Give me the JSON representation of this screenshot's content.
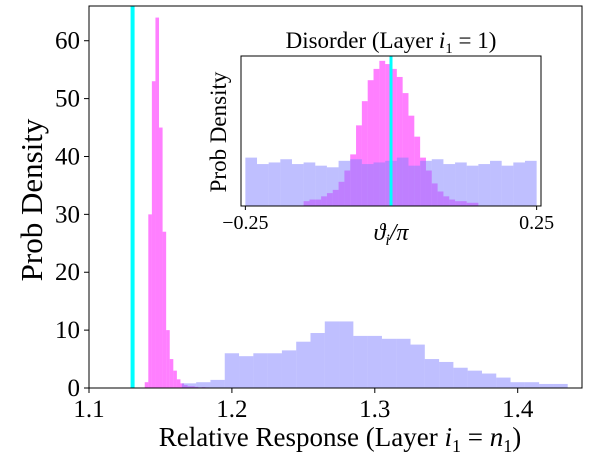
{
  "chart_data": [
    {
      "type": "histogram",
      "xlabel": "Relative Response (Layer $i_1 = n_1$)",
      "xlabel_parts": [
        "Relative Response (Layer ",
        "i",
        "1",
        " = ",
        "n",
        "1",
        ")"
      ],
      "ylabel": "Prob Density",
      "xlim": [
        1.1,
        1.445
      ],
      "ylim": [
        0,
        66
      ],
      "xticks": [
        1.1,
        1.2,
        1.3,
        1.4
      ],
      "xtick_labels": [
        "1.1",
        "1.2",
        "1.3",
        "1.4"
      ],
      "yticks": [
        0,
        10,
        20,
        30,
        40,
        50,
        60
      ],
      "ytick_labels": [
        "0",
        "10",
        "20",
        "30",
        "40",
        "50",
        "60"
      ],
      "reference_line": {
        "x": 1.1305,
        "color": "#00ffff"
      },
      "series": [
        {
          "color": "#ff00ff",
          "opacity": 0.5,
          "bins": [
            [
              1.139,
              1.1415,
              1.0
            ],
            [
              1.1415,
              1.144,
              30.0
            ],
            [
              1.144,
              1.1465,
              53.0
            ],
            [
              1.1465,
              1.149,
              64.0
            ],
            [
              1.149,
              1.1515,
              45.0
            ],
            [
              1.1515,
              1.154,
              27.0
            ],
            [
              1.154,
              1.1565,
              10.0
            ],
            [
              1.1565,
              1.159,
              5.0
            ],
            [
              1.159,
              1.1615,
              3.0
            ],
            [
              1.1615,
              1.164,
              1.5
            ],
            [
              1.164,
              1.1665,
              0.8
            ],
            [
              1.1665,
              1.169,
              0.5
            ],
            [
              1.169,
              1.1715,
              0.3
            ],
            [
              1.1715,
              1.174,
              0.3
            ],
            [
              1.174,
              1.1765,
              0.2
            ],
            [
              1.1765,
              1.179,
              0.1
            ],
            [
              1.179,
              1.1815,
              0.15
            ],
            [
              1.1815,
              1.184,
              0.1
            ]
          ]
        },
        {
          "color": "#8080ff",
          "opacity": 0.5,
          "bins": [
            [
              1.165,
              1.175,
              0.8
            ],
            [
              1.175,
              1.185,
              1.0
            ],
            [
              1.185,
              1.195,
              1.4
            ],
            [
              1.195,
              1.205,
              6.0
            ],
            [
              1.205,
              1.215,
              5.5
            ],
            [
              1.215,
              1.225,
              6.0
            ],
            [
              1.225,
              1.235,
              6.0
            ],
            [
              1.235,
              1.245,
              6.5
            ],
            [
              1.245,
              1.255,
              8.0
            ],
            [
              1.255,
              1.265,
              9.5
            ],
            [
              1.265,
              1.275,
              11.5
            ],
            [
              1.275,
              1.285,
              11.5
            ],
            [
              1.285,
              1.295,
              9.0
            ],
            [
              1.295,
              1.305,
              9.0
            ],
            [
              1.305,
              1.315,
              8.5
            ],
            [
              1.315,
              1.325,
              8.5
            ],
            [
              1.325,
              1.335,
              7.5
            ],
            [
              1.335,
              1.345,
              5.0
            ],
            [
              1.345,
              1.355,
              4.5
            ],
            [
              1.355,
              1.365,
              3.5
            ],
            [
              1.365,
              1.375,
              3.0
            ],
            [
              1.375,
              1.385,
              2.5
            ],
            [
              1.385,
              1.395,
              1.8
            ],
            [
              1.395,
              1.405,
              1.0
            ],
            [
              1.405,
              1.415,
              1.0
            ],
            [
              1.415,
              1.425,
              0.7
            ],
            [
              1.425,
              1.435,
              0.7
            ]
          ]
        }
      ]
    },
    {
      "type": "histogram",
      "title": "Disorder (Layer $i_1 = 1$)",
      "title_parts": [
        "Disorder (Layer ",
        "i",
        "1",
        " = 1)"
      ],
      "xlabel": "$\\vartheta_i/\\pi$",
      "xlabel_parts": [
        "ϑ",
        "i",
        "/π"
      ],
      "ylabel": "Prob Density",
      "xlim": [
        -0.2575,
        0.2575
      ],
      "ylim": [
        0,
        9.3
      ],
      "xticks": [
        -0.25,
        0.25
      ],
      "xtick_labels": [
        "−0.25",
        "0.25"
      ],
      "yticks": [],
      "reference_line": {
        "x": 0.0,
        "color": "#00ffff"
      },
      "series": [
        {
          "color": "#ff00ff",
          "opacity": 0.5,
          "bins": [
            [
              -0.15,
              -0.14,
              0.3
            ],
            [
              -0.14,
              -0.13,
              0.4
            ],
            [
              -0.13,
              -0.12,
              0.4
            ],
            [
              -0.12,
              -0.11,
              0.6
            ],
            [
              -0.11,
              -0.1,
              0.8
            ],
            [
              -0.1,
              -0.09,
              1.0
            ],
            [
              -0.09,
              -0.08,
              1.5
            ],
            [
              -0.08,
              -0.07,
              2.2
            ],
            [
              -0.07,
              -0.06,
              3.2
            ],
            [
              -0.06,
              -0.05,
              5.0
            ],
            [
              -0.05,
              -0.04,
              6.5
            ],
            [
              -0.04,
              -0.03,
              7.8
            ],
            [
              -0.03,
              -0.02,
              8.5
            ],
            [
              -0.02,
              -0.01,
              9.0
            ],
            [
              -0.01,
              0.0,
              8.8
            ],
            [
              0.0,
              0.01,
              8.5
            ],
            [
              0.01,
              0.02,
              8.0
            ],
            [
              0.02,
              0.03,
              7.0
            ],
            [
              0.03,
              0.04,
              5.6
            ],
            [
              0.04,
              0.05,
              4.3
            ],
            [
              0.05,
              0.06,
              3.0
            ],
            [
              0.06,
              0.07,
              2.2
            ],
            [
              0.07,
              0.08,
              1.4
            ],
            [
              0.08,
              0.09,
              0.9
            ],
            [
              0.09,
              0.1,
              0.6
            ],
            [
              0.1,
              0.11,
              0.4
            ],
            [
              0.11,
              0.12,
              0.3
            ],
            [
              0.12,
              0.13,
              0.3
            ],
            [
              0.13,
              0.14,
              0.2
            ],
            [
              0.14,
              0.15,
              0.2
            ]
          ]
        },
        {
          "color": "#8080ff",
          "opacity": 0.5,
          "bins": [
            [
              -0.25,
              -0.23,
              3.0
            ],
            [
              -0.23,
              -0.21,
              2.6
            ],
            [
              -0.21,
              -0.19,
              2.7
            ],
            [
              -0.19,
              -0.17,
              2.9
            ],
            [
              -0.17,
              -0.15,
              2.6
            ],
            [
              -0.15,
              -0.13,
              2.7
            ],
            [
              -0.13,
              -0.11,
              2.5
            ],
            [
              -0.11,
              -0.09,
              2.4
            ],
            [
              -0.09,
              -0.07,
              2.8
            ],
            [
              -0.07,
              -0.05,
              2.9
            ],
            [
              -0.05,
              -0.03,
              2.6
            ],
            [
              -0.03,
              -0.01,
              2.7
            ],
            [
              -0.01,
              0.01,
              2.8
            ],
            [
              0.01,
              0.03,
              3.0
            ],
            [
              0.03,
              0.05,
              2.5
            ],
            [
              0.05,
              0.07,
              2.8
            ],
            [
              0.07,
              0.09,
              2.9
            ],
            [
              0.09,
              0.11,
              2.6
            ],
            [
              0.11,
              0.13,
              2.7
            ],
            [
              0.13,
              0.15,
              2.5
            ],
            [
              0.15,
              0.17,
              2.6
            ],
            [
              0.17,
              0.19,
              2.8
            ],
            [
              0.19,
              0.21,
              2.5
            ],
            [
              0.21,
              0.23,
              2.7
            ],
            [
              0.23,
              0.25,
              2.8
            ]
          ]
        }
      ]
    }
  ]
}
